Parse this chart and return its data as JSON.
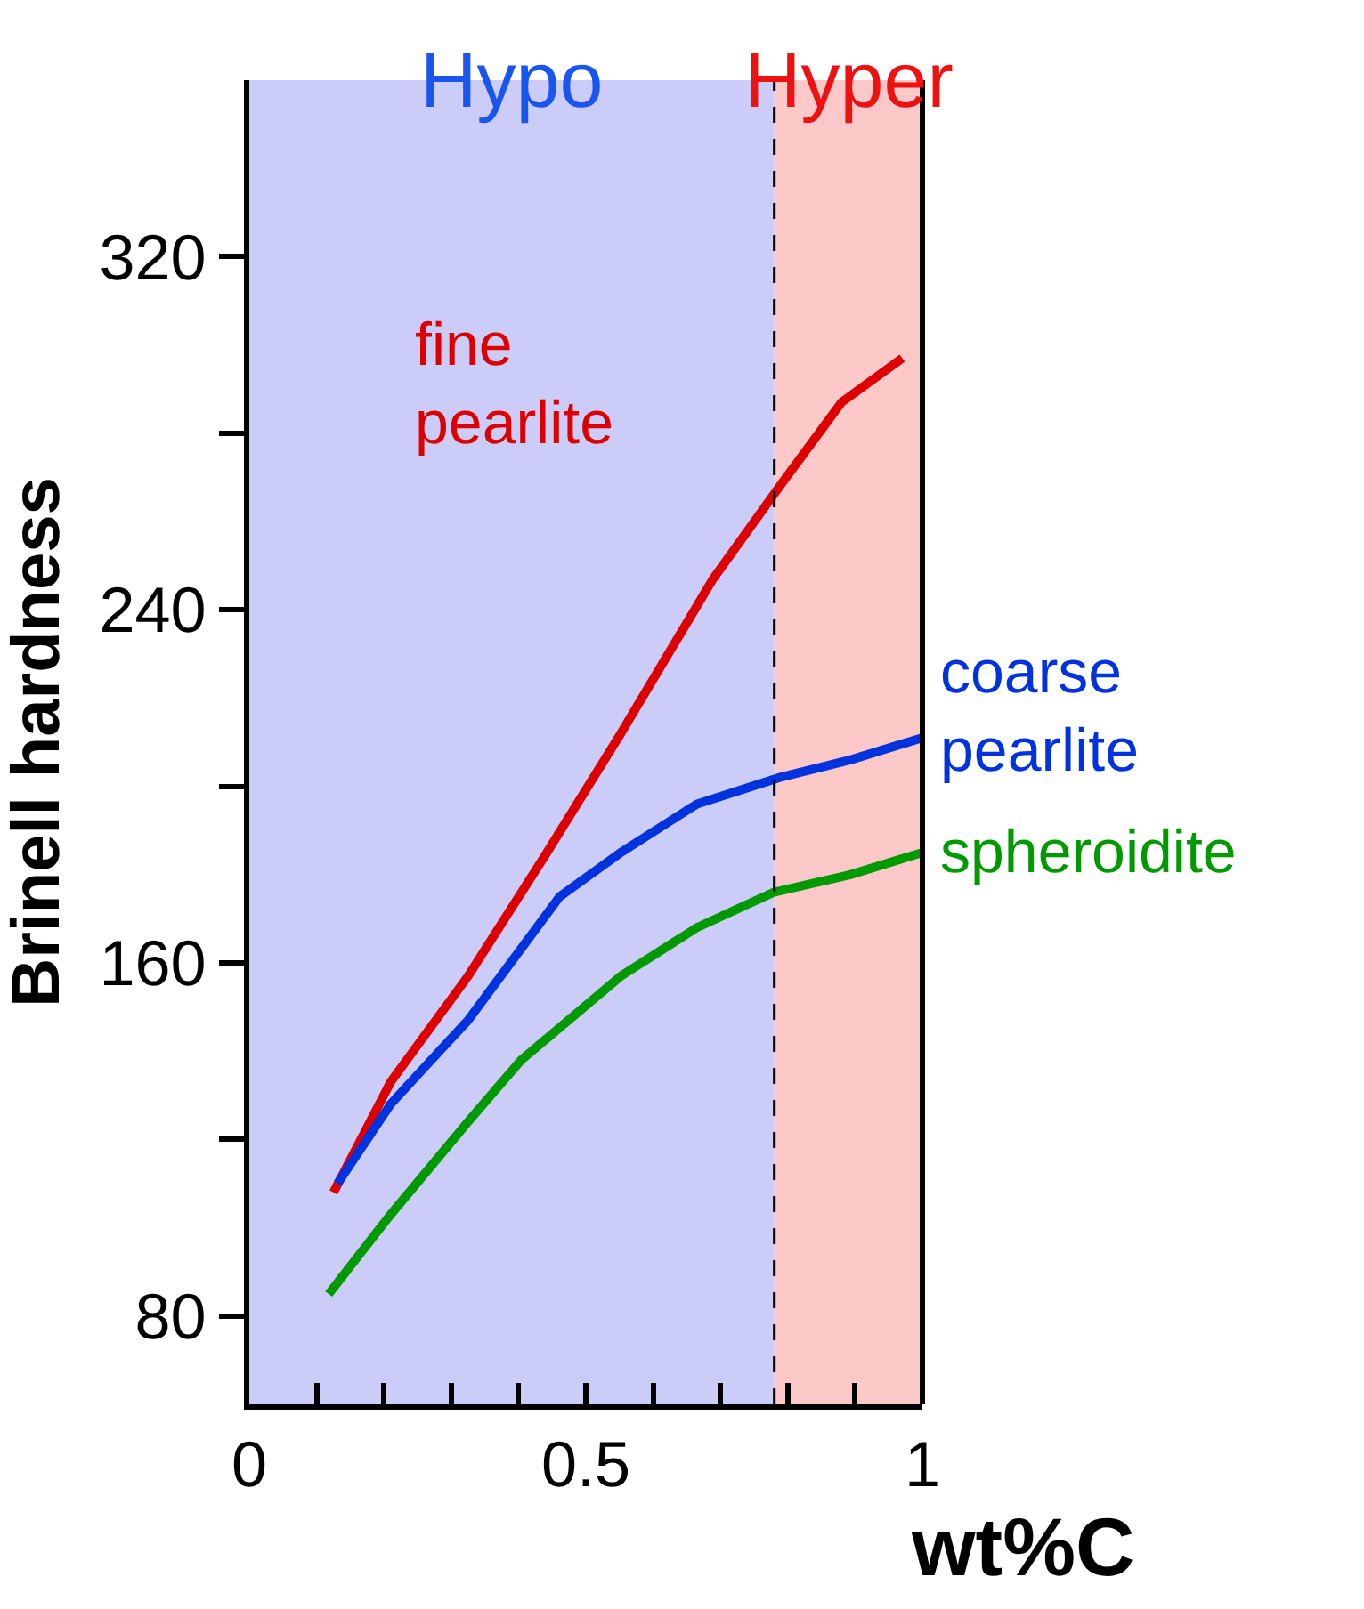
{
  "chart_data": {
    "type": "line",
    "xlabel": "wt%C",
    "ylabel": "Brinell hardness",
    "xlim": [
      0,
      1
    ],
    "ylim": [
      60,
      360
    ],
    "xticks": [
      0,
      {
        "value": 0.1,
        "label": null
      },
      {
        "value": 0.2,
        "label": null
      },
      {
        "value": 0.3,
        "label": null
      },
      {
        "value": 0.4,
        "label": null
      },
      0.5,
      {
        "value": 0.6,
        "label": null
      },
      {
        "value": 0.7,
        "label": null
      },
      {
        "value": 0.8,
        "label": null
      },
      {
        "value": 0.9,
        "label": null
      },
      1
    ],
    "yticks": [
      80,
      {
        "value": 120,
        "label": null
      },
      160,
      {
        "value": 200,
        "label": null
      },
      240,
      {
        "value": 280,
        "label": null
      },
      320
    ],
    "grid": false,
    "legend": false,
    "marker": "none",
    "line_style": "solid",
    "bands": [
      {
        "axis": "x",
        "from": 0,
        "to": 0.78,
        "label": "Hypo",
        "color": "#ccccf8"
      },
      {
        "axis": "x",
        "from": 0.78,
        "to": 1,
        "label": "Hyper",
        "color": "#fcc8c8"
      }
    ],
    "ref_lines": [
      {
        "axis": "x",
        "value": 0.78,
        "label": null,
        "color": "#000000",
        "line_style": "dashed"
      }
    ],
    "series": [
      {
        "name": "fine pearlite",
        "color": "#dd0000",
        "x": [
          0.125,
          0.21,
          0.325,
          0.438,
          0.552,
          0.689,
          0.788,
          0.88,
          0.97
        ],
        "values": [
          108,
          133,
          157,
          184,
          212,
          247,
          268,
          287,
          297
        ]
      },
      {
        "name": "coarse pearlite",
        "color": "#0033dd",
        "x": [
          0.131,
          0.21,
          0.325,
          0.461,
          0.552,
          0.665,
          0.788,
          0.893,
          1.0
        ],
        "values": [
          110,
          128,
          147,
          175,
          185,
          196,
          202,
          206,
          211
        ]
      },
      {
        "name": "spheroidite",
        "color": "#009900",
        "x": [
          0.118,
          0.21,
          0.325,
          0.404,
          0.552,
          0.665,
          0.779,
          0.893,
          1.0
        ],
        "values": [
          85,
          103,
          124,
          138,
          157,
          168,
          176,
          180,
          185
        ]
      }
    ]
  }
}
